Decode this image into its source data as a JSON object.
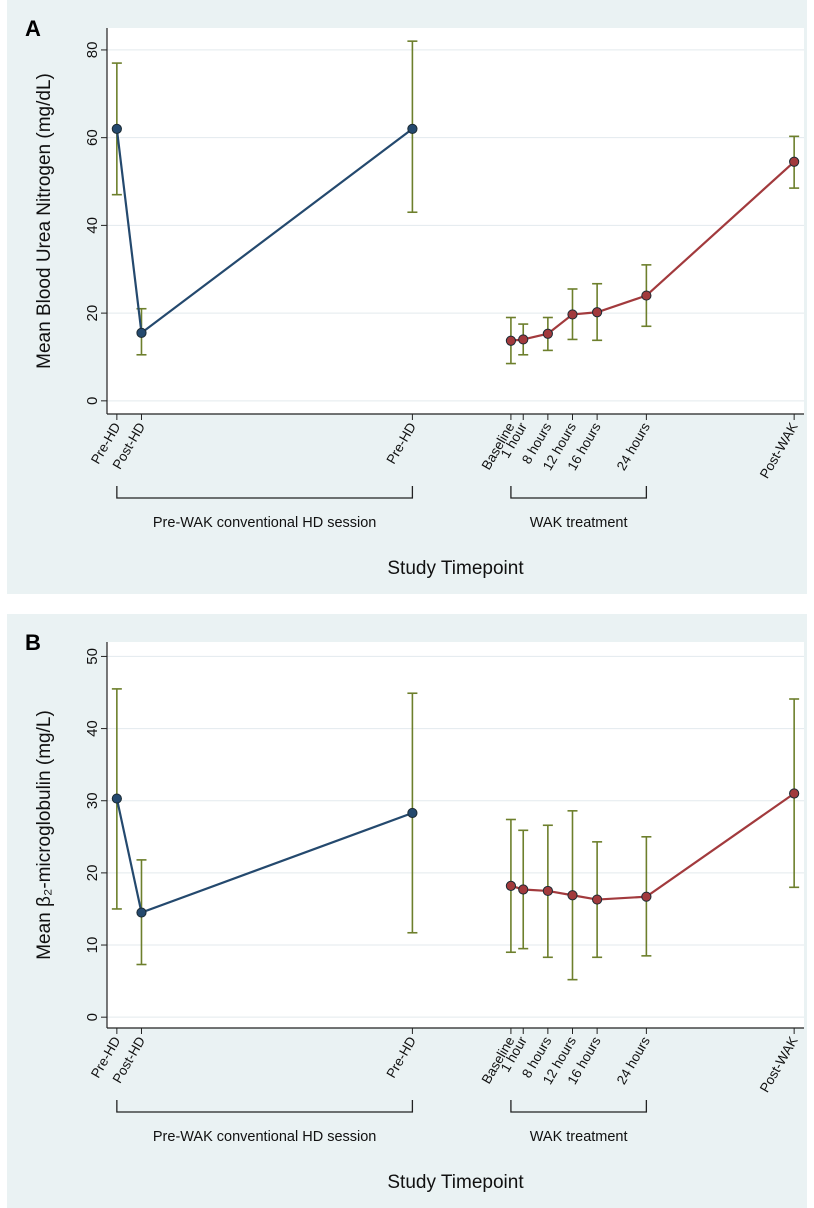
{
  "chart_data": [
    {
      "panel_label": "A",
      "type": "line",
      "xlabel": "Study Timepoint",
      "ylabel": "Mean Blood Urea Nitrogen (mg/dL)",
      "ylim": [
        0,
        80
      ],
      "yticks": [
        0,
        20,
        40,
        60,
        80
      ],
      "ylim_plot": [
        -3,
        85
      ],
      "grid": true,
      "brackets": [
        {
          "label": "Pre-WAK conventional HD session",
          "from": "Pre-HD",
          "to": "Pre-HD (2)"
        },
        {
          "label": "WAK treatment",
          "from": "Baseline",
          "to": "24 hours"
        }
      ],
      "series": [
        {
          "color": "#24496e",
          "points": [
            {
              "label": "Pre-HD",
              "x": 0,
              "y": 62,
              "err_low": 47,
              "err_high": 77
            },
            {
              "label": "Post-HD",
              "x": 1,
              "y": 15.5,
              "err_low": 10.5,
              "err_high": 21
            },
            {
              "label": "Pre-HD",
              "x": 12,
              "y": 62,
              "err_low": 43,
              "err_high": 82
            }
          ]
        },
        {
          "color": "#a23a3d",
          "points": [
            {
              "label": "Baseline",
              "x": 16,
              "y": 13.7,
              "err_low": 8.5,
              "err_high": 19
            },
            {
              "label": "1 hour",
              "x": 16.5,
              "y": 14,
              "err_low": 10.5,
              "err_high": 17.5
            },
            {
              "label": "8 hours",
              "x": 17.5,
              "y": 15.3,
              "err_low": 11.5,
              "err_high": 19
            },
            {
              "label": "12 hours",
              "x": 18.5,
              "y": 19.7,
              "err_low": 14,
              "err_high": 25.5
            },
            {
              "label": "16 hours",
              "x": 19.5,
              "y": 20.2,
              "err_low": 13.8,
              "err_high": 26.7
            },
            {
              "label": "24 hours",
              "x": 21.5,
              "y": 24,
              "err_low": 17,
              "err_high": 31
            },
            {
              "label": "Post-WAK",
              "x": 27.5,
              "y": 54.5,
              "err_low": 48.5,
              "err_high": 60.3
            }
          ]
        }
      ]
    },
    {
      "panel_label": "B",
      "type": "line",
      "xlabel": "Study Timepoint",
      "ylabel": "Mean β₂-microglobulin (mg/L)",
      "ylim": [
        0,
        50
      ],
      "yticks": [
        0,
        10,
        20,
        30,
        40,
        50
      ],
      "ylim_plot": [
        -1.5,
        52
      ],
      "grid": true,
      "brackets": [
        {
          "label": "Pre-WAK conventional HD session",
          "from": "Pre-HD",
          "to": "Pre-HD (2)"
        },
        {
          "label": "WAK treatment",
          "from": "Baseline",
          "to": "24 hours"
        }
      ],
      "series": [
        {
          "color": "#24496e",
          "points": [
            {
              "label": "Pre-HD",
              "x": 0,
              "y": 30.3,
              "err_low": 15,
              "err_high": 45.5
            },
            {
              "label": "Post-HD",
              "x": 1,
              "y": 14.5,
              "err_low": 7.3,
              "err_high": 21.8
            },
            {
              "label": "Pre-HD",
              "x": 12,
              "y": 28.3,
              "err_low": 11.7,
              "err_high": 44.9
            }
          ]
        },
        {
          "color": "#a23a3d",
          "points": [
            {
              "label": "Baseline",
              "x": 16,
              "y": 18.2,
              "err_low": 9,
              "err_high": 27.4
            },
            {
              "label": "1 hour",
              "x": 16.5,
              "y": 17.7,
              "err_low": 9.5,
              "err_high": 25.9
            },
            {
              "label": "8 hours",
              "x": 17.5,
              "y": 17.5,
              "err_low": 8.3,
              "err_high": 26.6
            },
            {
              "label": "12 hours",
              "x": 18.5,
              "y": 16.9,
              "err_low": 5.2,
              "err_high": 28.6
            },
            {
              "label": "16 hours",
              "x": 19.5,
              "y": 16.3,
              "err_low": 8.3,
              "err_high": 24.3
            },
            {
              "label": "24 hours",
              "x": 21.5,
              "y": 16.7,
              "err_low": 8.5,
              "err_high": 25
            },
            {
              "label": "Post-WAK",
              "x": 27.5,
              "y": 31,
              "err_low": 18,
              "err_high": 44.1
            }
          ]
        }
      ]
    }
  ],
  "colors": {
    "error_bar": "#6d7f2c",
    "background": "#eaf2f3",
    "plot_area": "#ffffff",
    "grid": "#e3eaee"
  }
}
